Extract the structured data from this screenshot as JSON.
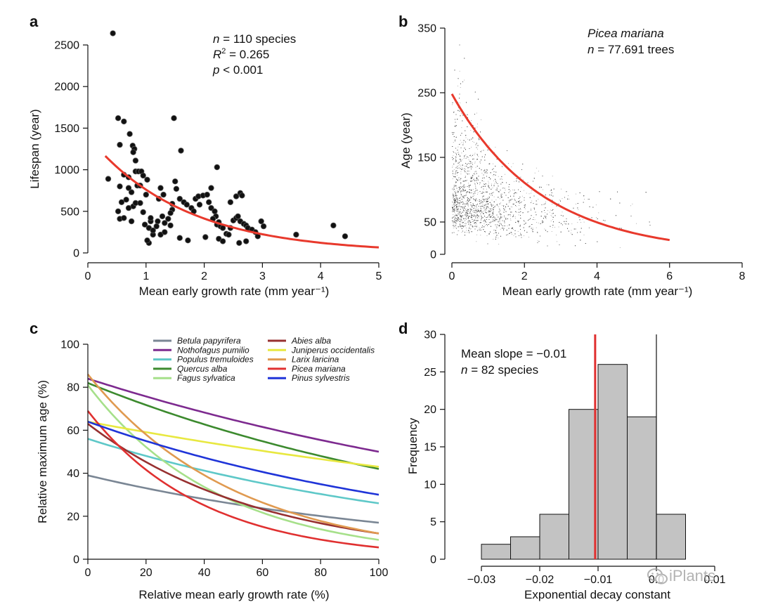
{
  "chart_data": [
    {
      "id": "a",
      "panel_letter": "a",
      "type": "scatter",
      "xlabel": "Mean early growth rate (mm year⁻¹)",
      "ylabel": "Lifespan (year)",
      "xlim": [
        0,
        5
      ],
      "ylim": [
        0,
        2700
      ],
      "xticks": [
        0,
        1,
        2,
        3,
        4,
        5
      ],
      "yticks": [
        0,
        500,
        1000,
        1500,
        2000,
        2500
      ],
      "annotation": {
        "n_italic": "n",
        "n_text": " = 110 species",
        "r_italic": "R",
        "r_sup": "2",
        "r_text": " = 0.265",
        "p_italic": "p",
        "p_text": " < 0.001"
      },
      "fit": {
        "color": "#e8392c",
        "a": 1400,
        "b": 0.61,
        "x_start": 0.3,
        "x_end": 5.0
      },
      "points": [
        [
          0.43,
          2640
        ],
        [
          0.52,
          1620
        ],
        [
          0.62,
          1580
        ],
        [
          0.55,
          1300
        ],
        [
          0.72,
          1430
        ],
        [
          0.77,
          1290
        ],
        [
          0.8,
          1250
        ],
        [
          0.78,
          1210
        ],
        [
          1.48,
          1620
        ],
        [
          1.6,
          1230
        ],
        [
          0.35,
          890
        ],
        [
          0.55,
          800
        ],
        [
          0.62,
          940
        ],
        [
          0.7,
          910
        ],
        [
          0.7,
          780
        ],
        [
          0.75,
          730
        ],
        [
          0.82,
          980
        ],
        [
          0.87,
          980
        ],
        [
          0.92,
          980
        ],
        [
          0.82,
          1110
        ],
        [
          0.95,
          930
        ],
        [
          0.85,
          810
        ],
        [
          0.9,
          810
        ],
        [
          1.02,
          880
        ],
        [
          1.0,
          700
        ],
        [
          0.78,
          560
        ],
        [
          0.66,
          640
        ],
        [
          0.58,
          610
        ],
        [
          0.52,
          500
        ],
        [
          0.55,
          410
        ],
        [
          0.62,
          420
        ],
        [
          0.7,
          540
        ],
        [
          0.75,
          380
        ],
        [
          0.82,
          600
        ],
        [
          0.9,
          600
        ],
        [
          0.95,
          490
        ],
        [
          0.98,
          340
        ],
        [
          1.05,
          300
        ],
        [
          1.08,
          380
        ],
        [
          1.12,
          220
        ],
        [
          1.2,
          380
        ],
        [
          1.18,
          320
        ],
        [
          1.25,
          220
        ],
        [
          1.28,
          440
        ],
        [
          1.32,
          360
        ],
        [
          1.38,
          410
        ],
        [
          1.42,
          330
        ],
        [
          1.45,
          520
        ],
        [
          1.5,
          860
        ],
        [
          1.52,
          770
        ],
        [
          1.58,
          650
        ],
        [
          1.22,
          650
        ],
        [
          1.3,
          700
        ],
        [
          1.25,
          780
        ],
        [
          1.65,
          610
        ],
        [
          1.7,
          580
        ],
        [
          1.78,
          540
        ],
        [
          1.82,
          500
        ],
        [
          1.85,
          650
        ],
        [
          1.9,
          680
        ],
        [
          1.92,
          580
        ],
        [
          1.98,
          690
        ],
        [
          2.05,
          700
        ],
        [
          2.08,
          610
        ],
        [
          2.12,
          540
        ],
        [
          2.18,
          500
        ],
        [
          2.2,
          440
        ],
        [
          2.15,
          410
        ],
        [
          2.22,
          340
        ],
        [
          2.25,
          370
        ],
        [
          2.28,
          320
        ],
        [
          2.32,
          300
        ],
        [
          2.38,
          230
        ],
        [
          2.42,
          220
        ],
        [
          2.45,
          300
        ],
        [
          2.5,
          390
        ],
        [
          2.55,
          420
        ],
        [
          2.58,
          440
        ],
        [
          2.62,
          380
        ],
        [
          2.68,
          350
        ],
        [
          2.72,
          330
        ],
        [
          2.75,
          300
        ],
        [
          2.82,
          280
        ],
        [
          2.88,
          250
        ],
        [
          2.92,
          200
        ],
        [
          2.98,
          380
        ],
        [
          3.02,
          320
        ],
        [
          3.58,
          220
        ],
        [
          4.22,
          330
        ],
        [
          4.42,
          200
        ],
        [
          2.22,
          1030
        ],
        [
          2.12,
          780
        ],
        [
          2.55,
          680
        ],
        [
          2.62,
          720
        ],
        [
          2.65,
          690
        ],
        [
          2.45,
          610
        ],
        [
          1.45,
          590
        ],
        [
          1.12,
          270
        ],
        [
          2.25,
          170
        ],
        [
          2.02,
          190
        ],
        [
          1.72,
          150
        ],
        [
          1.05,
          120
        ],
        [
          2.6,
          120
        ],
        [
          2.72,
          140
        ],
        [
          1.02,
          150
        ],
        [
          2.32,
          140
        ],
        [
          1.58,
          180
        ],
        [
          1.32,
          250
        ],
        [
          1.08,
          420
        ],
        [
          1.42,
          480
        ]
      ]
    },
    {
      "id": "b",
      "panel_letter": "b",
      "type": "scatter",
      "title": "Picea mariana",
      "annotation": {
        "n_italic": "n",
        "n_text": " = 77.691 trees"
      },
      "xlabel": "Mean early growth rate (mm year⁻¹)",
      "ylabel": "Age (year)",
      "xlim": [
        0,
        8
      ],
      "ylim": [
        0,
        350
      ],
      "xticks": [
        0,
        2,
        4,
        6,
        8
      ],
      "yticks": [
        0,
        50,
        150,
        250,
        350
      ],
      "fit": {
        "color": "#e8392c",
        "a": 248,
        "b": 0.403,
        "x_start": 0,
        "x_end": 6.0
      },
      "point_color": "#555555",
      "point_count": 9000
    },
    {
      "id": "c",
      "panel_letter": "c",
      "type": "line",
      "xlabel": "Relative mean early growth rate (%)",
      "ylabel": "Relative maximum age (%)",
      "xlim": [
        0,
        100
      ],
      "ylim": [
        0,
        100
      ],
      "xticks": [
        0,
        20,
        40,
        60,
        80,
        100
      ],
      "yticks": [
        0,
        20,
        40,
        60,
        80,
        100
      ],
      "series": [
        {
          "name": "Betula papyrifera",
          "color": "#7a8694",
          "start": 39,
          "end": 17
        },
        {
          "name": "Nothofagus pumilio",
          "color": "#7d2a8f",
          "start": 84,
          "end": 50
        },
        {
          "name": "Populus tremuloides",
          "color": "#5ec8c8",
          "start": 56,
          "end": 26
        },
        {
          "name": "Quercus alba",
          "color": "#3c8a2e",
          "start": 82,
          "end": 42
        },
        {
          "name": "Fagus sylvatica",
          "color": "#a6e08a",
          "start": 81,
          "end": 9
        },
        {
          "name": "Abies alba",
          "color": "#973030",
          "start": 63,
          "end": 12
        },
        {
          "name": "Juniperus occidentalis",
          "color": "#e8e840",
          "start": 64,
          "end": 43
        },
        {
          "name": "Larix laricina",
          "color": "#e09a50",
          "start": 86,
          "end": 12
        },
        {
          "name": "Picea mariana",
          "color": "#e03030",
          "start": 69,
          "end": 5.5
        },
        {
          "name": "Pinus sylvestris",
          "color": "#1f34d8",
          "start": 64,
          "end": 30
        }
      ]
    },
    {
      "id": "d",
      "panel_letter": "d",
      "type": "bar",
      "subtype": "histogram",
      "xlabel": "Exponential decay constant",
      "ylabel": "Frequency",
      "xlim": [
        -0.03,
        0.01
      ],
      "ylim": [
        0,
        30
      ],
      "xticks": [
        -0.03,
        -0.02,
        -0.01,
        0.0,
        0.01
      ],
      "xtick_labels": [
        "−0.03",
        "−0.02",
        "−0.01",
        "0.0",
        "0.01"
      ],
      "yticks": [
        0,
        5,
        10,
        15,
        20,
        25,
        30
      ],
      "bins": [
        {
          "x0": -0.03,
          "x1": -0.025,
          "count": 2
        },
        {
          "x0": -0.025,
          "x1": -0.02,
          "count": 3
        },
        {
          "x0": -0.02,
          "x1": -0.015,
          "count": 6
        },
        {
          "x0": -0.015,
          "x1": -0.01,
          "count": 20
        },
        {
          "x0": -0.01,
          "x1": -0.005,
          "count": 26
        },
        {
          "x0": -0.005,
          "x1": 0.0,
          "count": 19
        },
        {
          "x0": 0.0,
          "x1": 0.005,
          "count": 6
        }
      ],
      "mean_line": {
        "x": -0.0105,
        "color": "#e03030"
      },
      "zero_line": {
        "x": 0.0,
        "color": "#111111"
      },
      "annotation": {
        "mean_text": "Mean slope = −0.01",
        "n_italic": "n",
        "n_text": " = 82 species"
      }
    }
  ],
  "watermark": {
    "text": "iPlants",
    "icon": "wechat-icon"
  }
}
